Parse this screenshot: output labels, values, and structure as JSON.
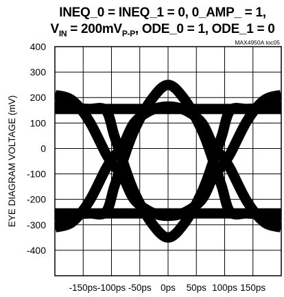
{
  "chart_data": {
    "type": "line",
    "title_line1": "INEQ_0 = INEQ_1 = 0, 0_AMP_ = 1,",
    "title_line2": "V_IN = 200mV_P-P, ODE_0 = 1, ODE_1 = 0",
    "reference": "MAX4950A toc05",
    "xlabel": "",
    "ylabel": "EYE DIAGRAM VOLTAGE (mV)",
    "x_tick_labels": [
      "-150ps",
      "-100ps",
      "-50ps",
      "0ps",
      "50ps",
      "100ps",
      "150ps"
    ],
    "y_tick_labels": [
      "400",
      "300",
      "200",
      "100",
      "0",
      "-100",
      "-200",
      "-300",
      "-400"
    ],
    "xlim": [
      -200,
      200
    ],
    "ylim": [
      -450,
      450
    ],
    "grid": true,
    "series": [
      {
        "x": [
          -200,
          -170,
          -140,
          -110,
          -95,
          -80,
          -60,
          -30,
          0,
          30,
          60,
          80,
          95,
          110,
          140,
          170,
          200
        ],
        "values": [
          -220,
          -210,
          -205,
          -200,
          -100,
          0,
          120,
          240,
          300,
          240,
          120,
          0,
          -100,
          -200,
          -205,
          -210,
          -220
        ]
      },
      {
        "x": [
          -200,
          -170,
          -140,
          -110,
          -95,
          -80,
          -60,
          -30,
          0,
          30,
          60,
          80,
          95,
          110,
          140,
          170,
          200
        ],
        "values": [
          220,
          210,
          205,
          200,
          100,
          0,
          -120,
          -240,
          -300,
          -240,
          -120,
          0,
          100,
          200,
          205,
          210,
          220
        ]
      },
      {
        "x": [
          -200,
          -170,
          -140,
          -110,
          -95,
          -80,
          -60,
          -30,
          0,
          30,
          60,
          80,
          95,
          110,
          140,
          170,
          200
        ],
        "values": [
          260,
          240,
          160,
          30,
          -20,
          -60,
          -150,
          -200,
          -215,
          -200,
          -150,
          -60,
          -20,
          30,
          160,
          240,
          260
        ]
      },
      {
        "x": [
          -200,
          -170,
          -140,
          -110,
          -95,
          -80,
          -60,
          -30,
          0,
          30,
          60,
          80,
          95,
          110,
          140,
          170,
          200
        ],
        "values": [
          -260,
          -240,
          -160,
          -30,
          20,
          60,
          150,
          200,
          215,
          200,
          150,
          60,
          20,
          -30,
          -160,
          -240,
          -260
        ]
      },
      {
        "x": [
          -200,
          200
        ],
        "values": [
          205,
          205
        ]
      },
      {
        "x": [
          -200,
          200
        ],
        "values": [
          -205,
          -205
        ]
      }
    ]
  }
}
